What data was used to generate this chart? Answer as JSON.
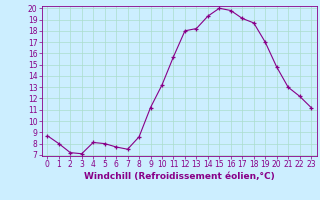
{
  "hours": [
    0,
    1,
    2,
    3,
    4,
    5,
    6,
    7,
    8,
    9,
    10,
    11,
    12,
    13,
    14,
    15,
    16,
    17,
    18,
    19,
    20,
    21,
    22,
    23
  ],
  "values": [
    8.7,
    8.0,
    7.2,
    7.1,
    8.1,
    8.0,
    7.7,
    7.5,
    8.6,
    11.2,
    13.2,
    15.7,
    18.0,
    18.2,
    19.3,
    20.0,
    19.8,
    19.1,
    18.7,
    17.0,
    14.8,
    13.0,
    12.2,
    11.2
  ],
  "xlabel": "Windchill (Refroidissement éolien,°C)",
  "ylim_min": 7,
  "ylim_max": 20,
  "xlim_min": -0.5,
  "xlim_max": 23.5,
  "yticks": [
    7,
    8,
    9,
    10,
    11,
    12,
    13,
    14,
    15,
    16,
    17,
    18,
    19,
    20
  ],
  "xticks": [
    0,
    1,
    2,
    3,
    4,
    5,
    6,
    7,
    8,
    9,
    10,
    11,
    12,
    13,
    14,
    15,
    16,
    17,
    18,
    19,
    20,
    21,
    22,
    23
  ],
  "line_color": "#880088",
  "marker": "+",
  "bg_color": "#cceeff",
  "grid_color": "#aaddcc",
  "tick_label_fontsize": 5.5,
  "xlabel_fontsize": 6.5,
  "markersize": 3,
  "linewidth": 0.8
}
